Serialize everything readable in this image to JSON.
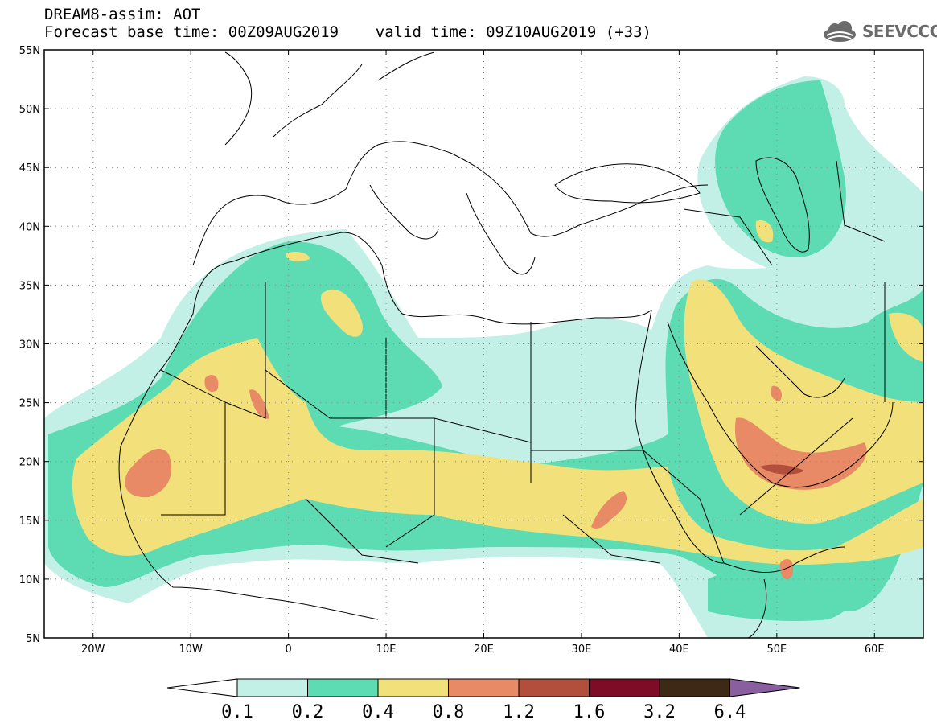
{
  "title": {
    "line1": "DREAM8-assim: AOT",
    "line2": "Forecast base time: 00Z09AUG2019    valid time: 09Z10AUG2019 (+33)"
  },
  "logo": {
    "text": "SEEVCCC",
    "icon": "cloud-icon"
  },
  "map": {
    "lat_range": [
      5,
      55
    ],
    "lon_range": [
      -25,
      65
    ],
    "lat_ticks": [
      "5N",
      "10N",
      "15N",
      "20N",
      "25N",
      "30N",
      "35N",
      "40N",
      "45N",
      "50N",
      "55N"
    ],
    "lon_ticks": [
      "20W",
      "10W",
      "0",
      "10E",
      "20E",
      "30E",
      "40E",
      "50E",
      "60E"
    ],
    "lon_tick_values": [
      -20,
      -10,
      0,
      10,
      20,
      30,
      40,
      50,
      60
    ],
    "lat_tick_values": [
      5,
      10,
      15,
      20,
      25,
      30,
      35,
      40,
      45,
      50,
      55
    ]
  },
  "colorbar": {
    "labels": [
      "0.1",
      "0.2",
      "0.4",
      "0.8",
      "1.2",
      "1.6",
      "3.2",
      "6.4"
    ],
    "colors": [
      "#c3f0e6",
      "#5ddcb3",
      "#f2e07a",
      "#e88a65",
      "#b14f3c",
      "#7e0c26",
      "#3e2816",
      "#8a5fa0"
    ]
  }
}
